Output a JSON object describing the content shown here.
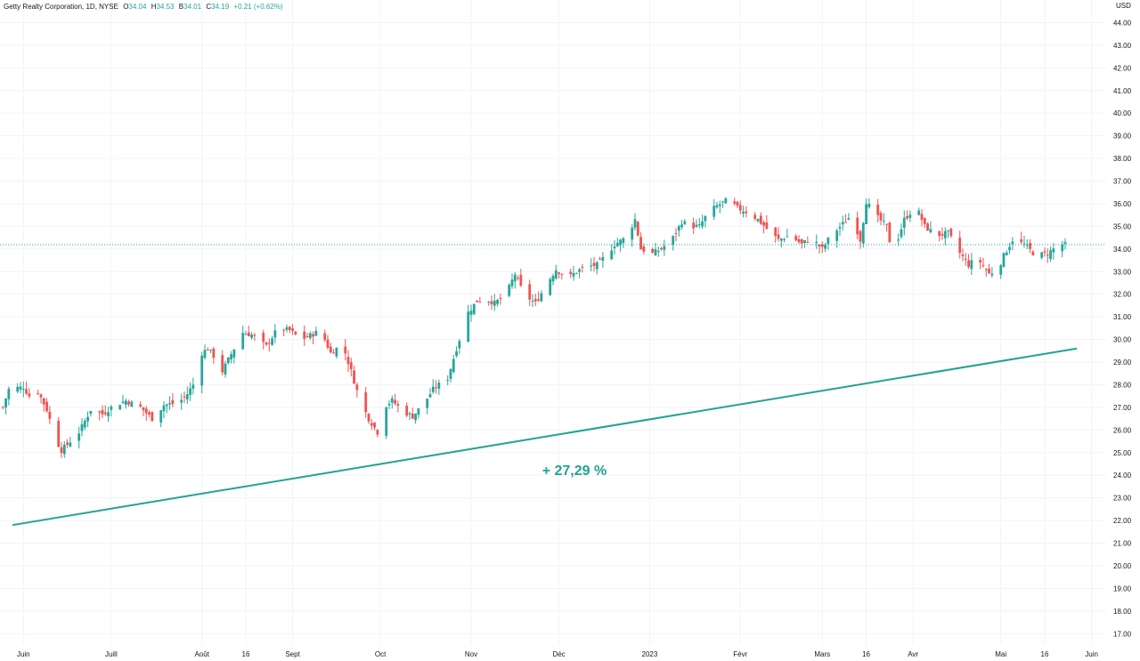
{
  "header": {
    "symbol": "Getty Realty Corporation, 1D, NYSE",
    "o_label": "O",
    "o_value": "34.04",
    "h_label": "H",
    "h_value": "34.53",
    "b_label": "B",
    "b_value": "34.01",
    "c_label": "C",
    "c_value": "34.19",
    "change": "+0.21 (+0.62%)"
  },
  "colors": {
    "up": "#26a69a",
    "down": "#ef5350",
    "trendline": "#22a38f",
    "grid": "#f0f3fa",
    "axis_text": "#131722",
    "last_price_line": "#26a69a"
  },
  "chart_data": {
    "type": "candlestick",
    "currency": "USD",
    "ylim": [
      16.5,
      45.0
    ],
    "y_ticks": [
      "17.00",
      "18.00",
      "19.00",
      "20.00",
      "21.00",
      "22.00",
      "23.00",
      "24.00",
      "25.00",
      "26.00",
      "27.00",
      "28.00",
      "29.00",
      "30.00",
      "31.00",
      "32.00",
      "33.00",
      "34.00",
      "35.00",
      "36.00",
      "37.00",
      "38.00",
      "39.00",
      "40.00",
      "41.00",
      "42.00",
      "43.00",
      "44.00"
    ],
    "x_range": [
      "2022-05-24",
      "2023-06-06"
    ],
    "x_ticks": [
      {
        "label": "Juin",
        "date": "2022-06-01"
      },
      {
        "label": "Juill",
        "date": "2022-07-01"
      },
      {
        "label": "Août",
        "date": "2022-08-01"
      },
      {
        "label": "16",
        "date": "2022-08-16"
      },
      {
        "label": "Sept",
        "date": "2022-09-01"
      },
      {
        "label": "Oct",
        "date": "2022-10-01"
      },
      {
        "label": "Nov",
        "date": "2022-11-01"
      },
      {
        "label": "Déc",
        "date": "2022-12-01"
      },
      {
        "label": "2023",
        "date": "2023-01-01"
      },
      {
        "label": "Févr",
        "date": "2023-02-01"
      },
      {
        "label": "Mars",
        "date": "2023-03-01"
      },
      {
        "label": "16",
        "date": "2023-03-16"
      },
      {
        "label": "Avr",
        "date": "2023-04-01"
      },
      {
        "label": "Mai",
        "date": "2023-05-01"
      },
      {
        "label": "16",
        "date": "2023-05-16"
      },
      {
        "label": "Juin",
        "date": "2023-06-01"
      }
    ],
    "close_path": [
      {
        "date": "2022-05-25",
        "close": 27.0
      },
      {
        "date": "2022-05-27",
        "close": 27.8
      },
      {
        "date": "2022-06-01",
        "close": 27.9
      },
      {
        "date": "2022-06-03",
        "close": 27.5
      },
      {
        "date": "2022-06-06",
        "close": 27.7
      },
      {
        "date": "2022-06-09",
        "close": 26.9
      },
      {
        "date": "2022-06-12",
        "close": 25.6
      },
      {
        "date": "2022-06-14",
        "close": 25.1
      },
      {
        "date": "2022-06-17",
        "close": 25.5
      },
      {
        "date": "2022-06-20",
        "close": 25.9
      },
      {
        "date": "2022-06-24",
        "close": 26.9
      },
      {
        "date": "2022-06-28",
        "close": 26.7
      },
      {
        "date": "2022-07-01",
        "close": 27.0
      },
      {
        "date": "2022-07-06",
        "close": 27.3
      },
      {
        "date": "2022-07-11",
        "close": 27.0
      },
      {
        "date": "2022-07-15",
        "close": 26.5
      },
      {
        "date": "2022-07-19",
        "close": 27.1
      },
      {
        "date": "2022-07-24",
        "close": 27.2
      },
      {
        "date": "2022-07-27",
        "close": 27.6
      },
      {
        "date": "2022-07-30",
        "close": 28.2
      },
      {
        "date": "2022-08-01",
        "close": 29.4
      },
      {
        "date": "2022-08-03",
        "close": 29.6
      },
      {
        "date": "2022-08-06",
        "close": 29.1
      },
      {
        "date": "2022-08-08",
        "close": 28.6
      },
      {
        "date": "2022-08-12",
        "close": 29.6
      },
      {
        "date": "2022-08-15",
        "close": 30.3
      },
      {
        "date": "2022-08-18",
        "close": 30.2
      },
      {
        "date": "2022-08-23",
        "close": 29.7
      },
      {
        "date": "2022-08-27",
        "close": 30.5
      },
      {
        "date": "2022-08-31",
        "close": 30.4
      },
      {
        "date": "2022-09-04",
        "close": 30.0
      },
      {
        "date": "2022-09-09",
        "close": 30.3
      },
      {
        "date": "2022-09-12",
        "close": 30.0
      },
      {
        "date": "2022-09-14",
        "close": 29.4
      },
      {
        "date": "2022-09-18",
        "close": 29.8
      },
      {
        "date": "2022-09-21",
        "close": 28.6
      },
      {
        "date": "2022-09-24",
        "close": 27.3
      },
      {
        "date": "2022-09-27",
        "close": 26.5
      },
      {
        "date": "2022-09-30",
        "close": 25.9
      },
      {
        "date": "2022-10-02",
        "close": 27.0
      },
      {
        "date": "2022-10-05",
        "close": 27.3
      },
      {
        "date": "2022-10-09",
        "close": 26.8
      },
      {
        "date": "2022-10-12",
        "close": 26.6
      },
      {
        "date": "2022-10-16",
        "close": 27.2
      },
      {
        "date": "2022-10-19",
        "close": 27.8
      },
      {
        "date": "2022-10-24",
        "close": 28.3
      },
      {
        "date": "2022-10-27",
        "close": 29.6
      },
      {
        "date": "2022-10-31",
        "close": 31.2
      },
      {
        "date": "2022-11-03",
        "close": 31.7
      },
      {
        "date": "2022-11-06",
        "close": 31.8
      },
      {
        "date": "2022-11-09",
        "close": 31.6
      },
      {
        "date": "2022-11-13",
        "close": 32.0
      },
      {
        "date": "2022-11-16",
        "close": 32.9
      },
      {
        "date": "2022-11-19",
        "close": 32.0
      },
      {
        "date": "2022-11-23",
        "close": 31.6
      },
      {
        "date": "2022-11-27",
        "close": 32.5
      },
      {
        "date": "2022-11-30",
        "close": 33.1
      },
      {
        "date": "2022-12-04",
        "close": 32.7
      },
      {
        "date": "2022-12-07",
        "close": 33.0
      },
      {
        "date": "2022-12-10",
        "close": 33.2
      },
      {
        "date": "2022-12-14",
        "close": 33.3
      },
      {
        "date": "2022-12-17",
        "close": 33.7
      },
      {
        "date": "2022-12-20",
        "close": 34.2
      },
      {
        "date": "2022-12-24",
        "close": 34.5
      },
      {
        "date": "2022-12-27",
        "close": 35.3
      },
      {
        "date": "2022-12-29",
        "close": 34.0
      },
      {
        "date": "2023-01-02",
        "close": 33.8
      },
      {
        "date": "2023-01-05",
        "close": 34.0
      },
      {
        "date": "2023-01-09",
        "close": 34.5
      },
      {
        "date": "2023-01-12",
        "close": 35.2
      },
      {
        "date": "2023-01-15",
        "close": 35.0
      },
      {
        "date": "2023-01-18",
        "close": 35.0
      },
      {
        "date": "2023-01-21",
        "close": 35.6
      },
      {
        "date": "2023-01-24",
        "close": 35.9
      },
      {
        "date": "2023-01-28",
        "close": 36.2
      },
      {
        "date": "2023-01-31",
        "close": 35.8
      },
      {
        "date": "2023-02-04",
        "close": 35.6
      },
      {
        "date": "2023-02-07",
        "close": 35.3
      },
      {
        "date": "2023-02-10",
        "close": 34.9
      },
      {
        "date": "2023-02-14",
        "close": 34.4
      },
      {
        "date": "2023-02-18",
        "close": 34.6
      },
      {
        "date": "2023-02-22",
        "close": 34.2
      },
      {
        "date": "2023-02-25",
        "close": 34.5
      },
      {
        "date": "2023-03-01",
        "close": 34.0
      },
      {
        "date": "2023-03-04",
        "close": 34.6
      },
      {
        "date": "2023-03-08",
        "close": 35.1
      },
      {
        "date": "2023-03-11",
        "close": 35.5
      },
      {
        "date": "2023-03-14",
        "close": 34.4
      },
      {
        "date": "2023-03-16",
        "close": 36.1
      },
      {
        "date": "2023-03-19",
        "close": 35.5
      },
      {
        "date": "2023-03-23",
        "close": 35.0
      },
      {
        "date": "2023-03-25",
        "close": 33.7
      },
      {
        "date": "2023-03-29",
        "close": 35.3
      },
      {
        "date": "2023-04-02",
        "close": 35.9
      },
      {
        "date": "2023-04-05",
        "close": 35.0
      },
      {
        "date": "2023-04-09",
        "close": 34.6
      },
      {
        "date": "2023-04-13",
        "close": 34.7
      },
      {
        "date": "2023-04-16",
        "close": 34.0
      },
      {
        "date": "2023-04-20",
        "close": 33.3
      },
      {
        "date": "2023-04-23",
        "close": 33.6
      },
      {
        "date": "2023-04-27",
        "close": 32.9
      },
      {
        "date": "2023-04-30",
        "close": 33.1
      },
      {
        "date": "2023-05-02",
        "close": 33.7
      },
      {
        "date": "2023-05-05",
        "close": 34.4
      },
      {
        "date": "2023-05-09",
        "close": 34.2
      },
      {
        "date": "2023-05-13",
        "close": 33.7
      },
      {
        "date": "2023-05-17",
        "close": 33.8
      },
      {
        "date": "2023-05-21",
        "close": 34.2
      },
      {
        "date": "2023-05-23",
        "close": 34.19
      }
    ],
    "last_price": 34.19,
    "annotations": [
      {
        "text": "+ 27,29 %",
        "date": "2023-01-02",
        "y": 24.2
      }
    ],
    "trendline": {
      "start": {
        "date": "2022-05-24",
        "y": 21.8
      },
      "end": {
        "date": "2023-05-27",
        "y": 29.6
      }
    },
    "grid": true,
    "legend": "top-left"
  }
}
